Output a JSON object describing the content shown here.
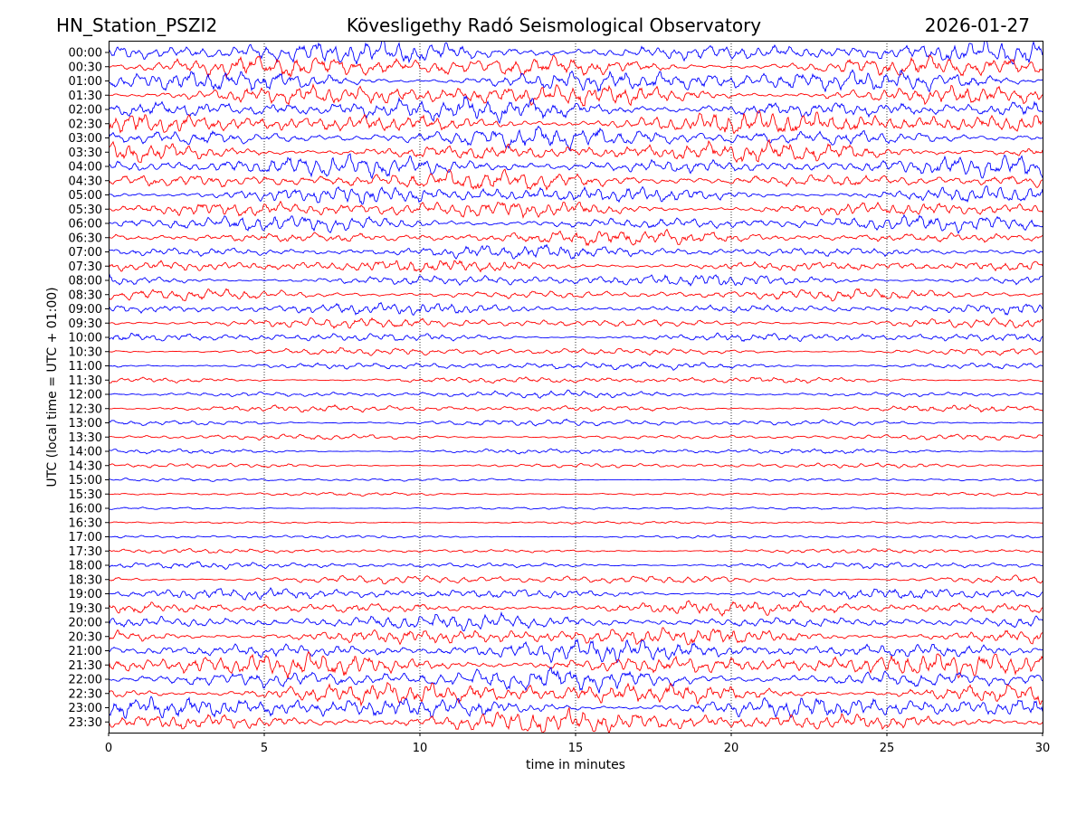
{
  "header": {
    "station": "HN_Station_PSZI2",
    "observatory": "Kövesligethy Radó Seismological Observatory",
    "date": "2026-01-27"
  },
  "chart_data": {
    "type": "line",
    "subtype": "helicorder",
    "xlabel": "time in minutes",
    "ylabel": "UTC (local time = UTC + 01:00)",
    "xlim": [
      0,
      30
    ],
    "x_ticks": [
      "0",
      "5",
      "10",
      "15",
      "20",
      "25",
      "30"
    ],
    "x_tick_values": [
      0,
      5,
      10,
      15,
      20,
      25,
      30
    ],
    "grid": "vertical dotted at 5-minute ticks",
    "trace_colors": [
      "#0000ff",
      "#ff0000"
    ],
    "rows": [
      {
        "label": "00:00",
        "amplitude": 1.0
      },
      {
        "label": "00:30",
        "amplitude": 1.0
      },
      {
        "label": "01:00",
        "amplitude": 1.0
      },
      {
        "label": "01:30",
        "amplitude": 1.0
      },
      {
        "label": "02:00",
        "amplitude": 1.0
      },
      {
        "label": "02:30",
        "amplitude": 1.0
      },
      {
        "label": "03:00",
        "amplitude": 0.95
      },
      {
        "label": "03:30",
        "amplitude": 0.9
      },
      {
        "label": "04:00",
        "amplitude": 0.9
      },
      {
        "label": "04:30",
        "amplitude": 0.85
      },
      {
        "label": "05:00",
        "amplitude": 0.8
      },
      {
        "label": "05:30",
        "amplitude": 0.75
      },
      {
        "label": "06:00",
        "amplitude": 0.7
      },
      {
        "label": "06:30",
        "amplitude": 0.65
      },
      {
        "label": "07:00",
        "amplitude": 0.6
      },
      {
        "label": "07:30",
        "amplitude": 0.55
      },
      {
        "label": "08:00",
        "amplitude": 0.55
      },
      {
        "label": "08:30",
        "amplitude": 0.5
      },
      {
        "label": "09:00",
        "amplitude": 0.5
      },
      {
        "label": "09:30",
        "amplitude": 0.45
      },
      {
        "label": "10:00",
        "amplitude": 0.4
      },
      {
        "label": "10:30",
        "amplitude": 0.35
      },
      {
        "label": "11:00",
        "amplitude": 0.35
      },
      {
        "label": "11:30",
        "amplitude": 0.3
      },
      {
        "label": "12:00",
        "amplitude": 0.3
      },
      {
        "label": "12:30",
        "amplitude": 0.3
      },
      {
        "label": "13:00",
        "amplitude": 0.3
      },
      {
        "label": "13:30",
        "amplitude": 0.25
      },
      {
        "label": "14:00",
        "amplitude": 0.25
      },
      {
        "label": "14:30",
        "amplitude": 0.22
      },
      {
        "label": "15:00",
        "amplitude": 0.15
      },
      {
        "label": "15:30",
        "amplitude": 0.15
      },
      {
        "label": "16:00",
        "amplitude": 0.12
      },
      {
        "label": "16:30",
        "amplitude": 0.12
      },
      {
        "label": "17:00",
        "amplitude": 0.15
      },
      {
        "label": "17:30",
        "amplitude": 0.2
      },
      {
        "label": "18:00",
        "amplitude": 0.3
      },
      {
        "label": "18:30",
        "amplitude": 0.4
      },
      {
        "label": "19:00",
        "amplitude": 0.5
      },
      {
        "label": "19:30",
        "amplitude": 0.6
      },
      {
        "label": "20:00",
        "amplitude": 0.7
      },
      {
        "label": "20:30",
        "amplitude": 0.8
      },
      {
        "label": "21:00",
        "amplitude": 0.9
      },
      {
        "label": "21:30",
        "amplitude": 1.0
      },
      {
        "label": "22:00",
        "amplitude": 1.0
      },
      {
        "label": "22:30",
        "amplitude": 1.0
      },
      {
        "label": "23:00",
        "amplitude": 1.0
      },
      {
        "label": "23:30",
        "amplitude": 1.0
      }
    ]
  }
}
